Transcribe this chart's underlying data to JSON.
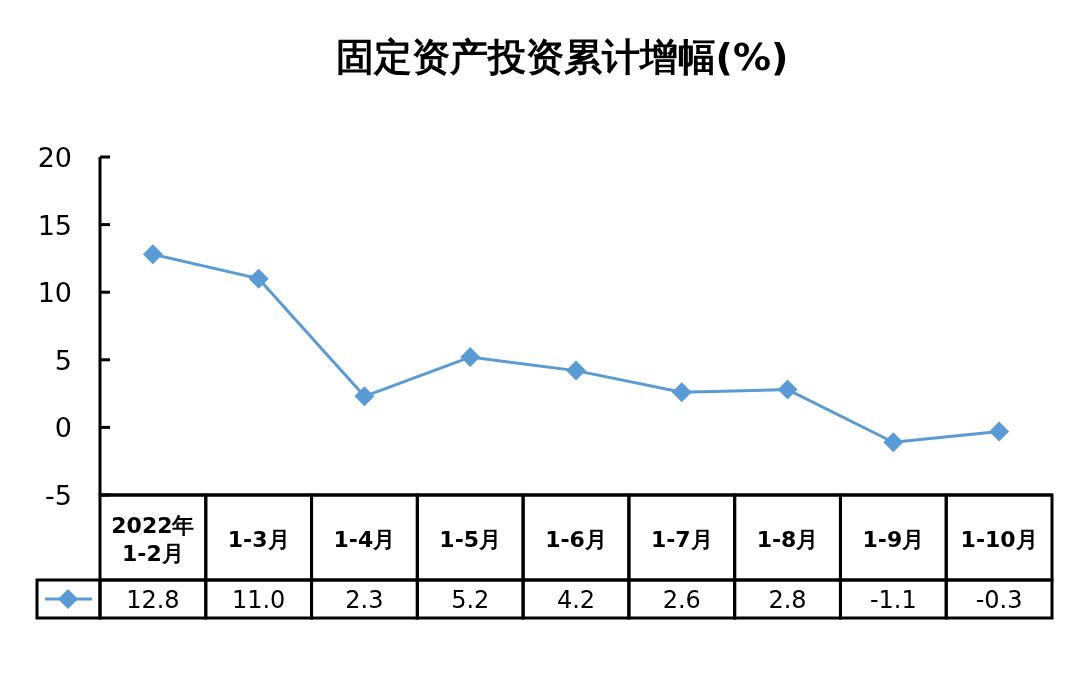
{
  "chart_data": {
    "type": "line",
    "title": "固定资产投资累计增幅(%)",
    "categories": [
      "2022年\n1-2月",
      "1-3月",
      "1-4月",
      "1-5月",
      "1-6月",
      "1-7月",
      "1-8月",
      "1-9月",
      "1-10月"
    ],
    "series": [
      {
        "color": "#5b9bd5",
        "values": [
          12.8,
          11.0,
          2.3,
          5.2,
          4.2,
          2.6,
          2.8,
          -1.1,
          -0.3
        ],
        "value_labels": [
          "12.8",
          "11.0",
          "2.3",
          "5.2",
          "4.2",
          "2.6",
          "2.8",
          "-1.1",
          "-0.3"
        ]
      }
    ],
    "ylim": [
      -5,
      20
    ],
    "yticks": [
      -5,
      0,
      5,
      10,
      15,
      20
    ],
    "marker": "diamond",
    "line_style": "solid",
    "grid": false
  }
}
